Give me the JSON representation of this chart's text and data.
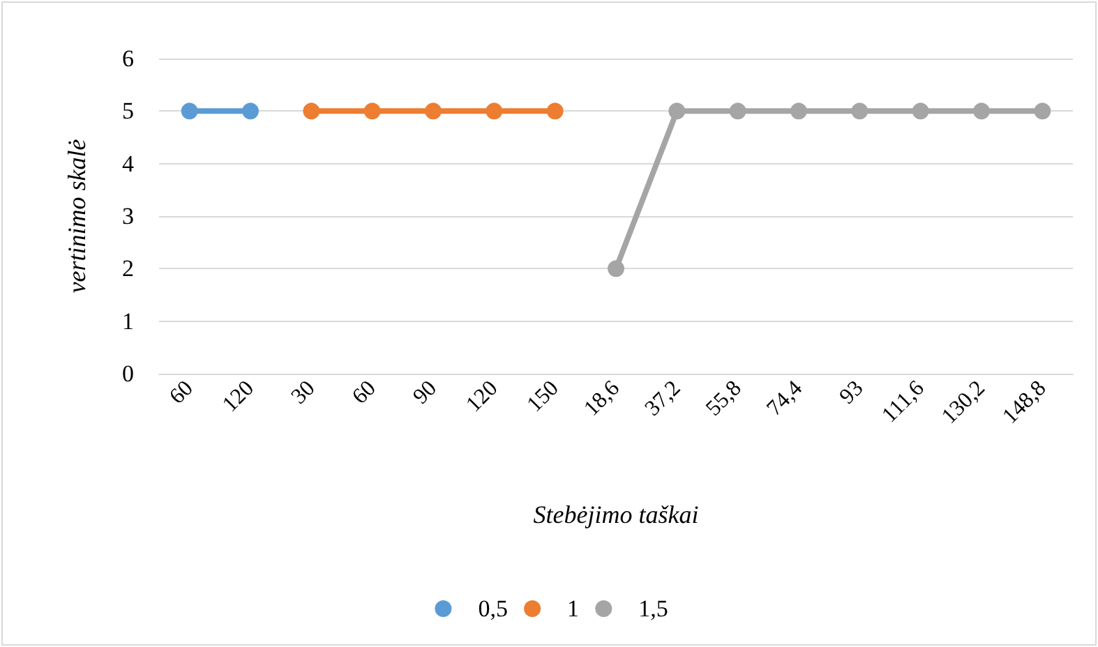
{
  "chart_data": {
    "type": "line",
    "xlabel": "Stebėjimo taškai",
    "ylabel": "vertinimo skalė",
    "categories": [
      "60",
      "120",
      "30",
      "60",
      "90",
      "120",
      "150",
      "18,6",
      "37,2",
      "55,8",
      "74,4",
      "93",
      "111,6",
      "130,2",
      "148,8"
    ],
    "series": [
      {
        "name": "0,5",
        "color": "#5b9bd5",
        "values": [
          5,
          5,
          null,
          null,
          null,
          null,
          null,
          null,
          null,
          null,
          null,
          null,
          null,
          null,
          null
        ]
      },
      {
        "name": "1",
        "color": "#ed7d31",
        "values": [
          null,
          null,
          5,
          5,
          5,
          5,
          5,
          null,
          null,
          null,
          null,
          null,
          null,
          null,
          null
        ]
      },
      {
        "name": "1,5",
        "color": "#a5a5a5",
        "values": [
          null,
          null,
          null,
          null,
          null,
          null,
          null,
          2,
          5,
          5,
          5,
          5,
          5,
          5,
          5
        ]
      }
    ],
    "ylim": [
      0,
      6
    ],
    "yticks": [
      0,
      1,
      2,
      3,
      4,
      5,
      6
    ],
    "grid": "y",
    "legend": "bottom",
    "marker": "circle",
    "line_style": "solid"
  }
}
